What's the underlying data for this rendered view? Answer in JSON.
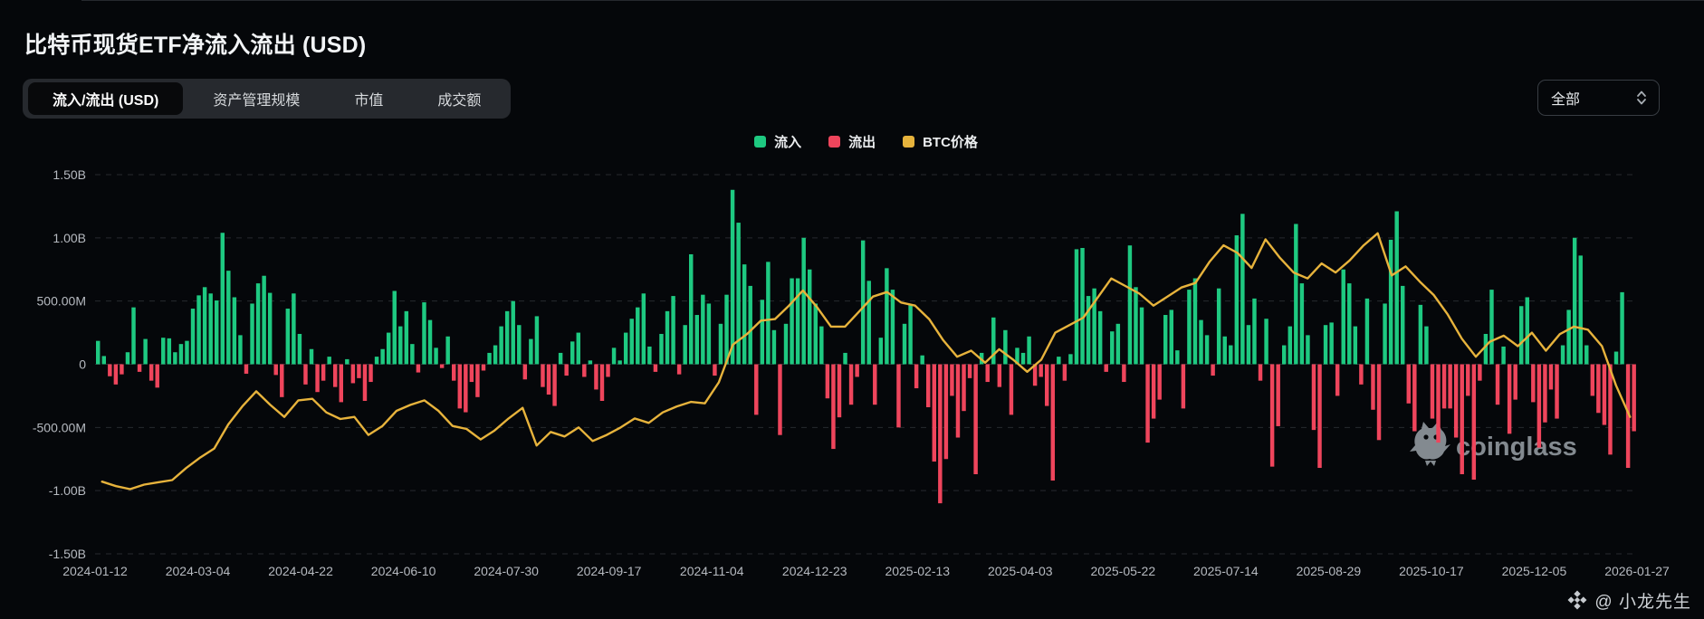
{
  "header": {
    "title": "比特币现货ETF净流入流出 (USD)"
  },
  "tabs": {
    "items": [
      {
        "label": "流入/流出 (USD)",
        "active": true
      },
      {
        "label": "资产管理规模",
        "active": false
      },
      {
        "label": "市值",
        "active": false
      },
      {
        "label": "成交额",
        "active": false
      }
    ]
  },
  "range_select": {
    "value": "全部"
  },
  "legend": {
    "items": [
      {
        "label": "流入",
        "color": "#1ec981"
      },
      {
        "label": "流出",
        "color": "#ef455c"
      },
      {
        "label": "BTC价格",
        "color": "#e7b33c"
      }
    ]
  },
  "watermark": {
    "text": "coinglass"
  },
  "attribution": {
    "text": "@ 小龙先生"
  },
  "chart_data": {
    "type": "bar",
    "title": "比特币现货ETF净流入流出 (USD)",
    "grid": "horizontal dashed",
    "legend_position": "top-center",
    "y_ticks_labels": [
      "1.50B",
      "1.00B",
      "500.00M",
      "0",
      "-500.00M",
      "-1.00B",
      "-1.50B"
    ],
    "y_axis_range_musd": [
      -1500,
      1500
    ],
    "x_tick_labels": [
      "2024-01-12",
      "2024-03-04",
      "2024-04-22",
      "2024-06-10",
      "2024-07-30",
      "2024-09-17",
      "2024-11-04",
      "2024-12-23",
      "2025-02-13",
      "2025-04-03",
      "2025-05-22",
      "2025-07-14",
      "2025-08-29",
      "2025-10-17",
      "2025-12-05",
      "2026-01-27"
    ],
    "series": [
      {
        "name": "净流入/流出",
        "type": "bar",
        "unit": "M USD",
        "positive_label": "流入",
        "negative_label": "流出",
        "positive_color": "#1ec981",
        "negative_color": "#ef455c",
        "values": [
          185,
          65,
          -95,
          -160,
          -80,
          95,
          450,
          -60,
          200,
          -130,
          -185,
          210,
          205,
          95,
          160,
          185,
          440,
          545,
          610,
          560,
          505,
          1040,
          740,
          530,
          230,
          -75,
          480,
          640,
          700,
          565,
          -85,
          -260,
          440,
          560,
          240,
          -160,
          120,
          -220,
          -130,
          60,
          -180,
          -300,
          40,
          -150,
          -110,
          -290,
          -140,
          60,
          120,
          250,
          580,
          300,
          420,
          160,
          -65,
          490,
          350,
          130,
          -30,
          220,
          -130,
          -350,
          -380,
          -140,
          -260,
          -50,
          90,
          150,
          300,
          420,
          500,
          310,
          -120,
          200,
          380,
          -180,
          -240,
          -330,
          90,
          -90,
          180,
          250,
          -100,
          30,
          -200,
          -290,
          -100,
          130,
          30,
          250,
          360,
          450,
          560,
          140,
          -60,
          240,
          420,
          540,
          -80,
          310,
          870,
          390,
          550,
          480,
          -90,
          320,
          550,
          1380,
          1120,
          790,
          620,
          -400,
          510,
          810,
          270,
          -560,
          320,
          680,
          680,
          1000,
          750,
          480,
          300,
          -270,
          -670,
          -420,
          90,
          -320,
          -100,
          980,
          660,
          -320,
          210,
          760,
          590,
          -500,
          320,
          470,
          -190,
          70,
          -340,
          -770,
          -1100,
          -750,
          -250,
          -580,
          -370,
          -110,
          -870,
          90,
          -140,
          370,
          -180,
          270,
          -400,
          130,
          90,
          220,
          -170,
          -100,
          -330,
          -920,
          60,
          -130,
          80,
          910,
          920,
          540,
          600,
          420,
          -60,
          260,
          320,
          -140,
          940,
          610,
          450,
          -620,
          -430,
          -280,
          390,
          430,
          110,
          -350,
          590,
          680,
          350,
          230,
          -90,
          600,
          220,
          150,
          1020,
          1190,
          310,
          520,
          -130,
          360,
          -810,
          -490,
          150,
          300,
          1110,
          640,
          230,
          -520,
          -820,
          310,
          330,
          -250,
          750,
          640,
          300,
          -160,
          520,
          -360,
          -600,
          480,
          985,
          1210,
          620,
          -310,
          -530,
          470,
          300,
          -430,
          -620,
          -350,
          -350,
          -580,
          -870,
          -250,
          -913,
          -130,
          240,
          590,
          -320,
          140,
          -550,
          -280,
          460,
          530,
          -300,
          -660,
          -460,
          -200,
          -430,
          150,
          430,
          1000,
          860,
          150,
          -250,
          -385,
          -480,
          -715,
          100,
          570,
          -820,
          -530
        ]
      },
      {
        "name": "BTC价格",
        "type": "line",
        "unit": "USD",
        "color": "#e7b33c",
        "hidden_axis_range_usd": [
          19000,
          145000
        ],
        "values": [
          43000,
          41500,
          40500,
          42000,
          42800,
          43500,
          47500,
          51000,
          54000,
          62000,
          68000,
          73000,
          68500,
          64500,
          70000,
          70500,
          66000,
          63800,
          64500,
          58500,
          61500,
          66500,
          68500,
          70000,
          66500,
          61500,
          60500,
          57000,
          60000,
          64000,
          67500,
          55000,
          59500,
          58000,
          61000,
          56500,
          58500,
          61000,
          64000,
          62500,
          66000,
          68000,
          69500,
          69000,
          76000,
          88500,
          92000,
          96500,
          97000,
          101500,
          106500,
          101000,
          94500,
          94500,
          99500,
          104500,
          106000,
          102500,
          101500,
          97000,
          90000,
          84500,
          86500,
          82500,
          87000,
          83500,
          79500,
          83500,
          92500,
          95000,
          97500,
          104000,
          110500,
          108000,
          105500,
          101500,
          104500,
          107500,
          109000,
          116000,
          121500,
          119000,
          114000,
          123500,
          117500,
          112500,
          110500,
          115500,
          112500,
          116500,
          121500,
          125500,
          111500,
          114500,
          109500,
          105000,
          98500,
          90500,
          84500,
          89500,
          91500,
          88000,
          92500,
          86500,
          92000,
          94500,
          93500,
          88000,
          75000,
          64500
        ]
      }
    ]
  }
}
